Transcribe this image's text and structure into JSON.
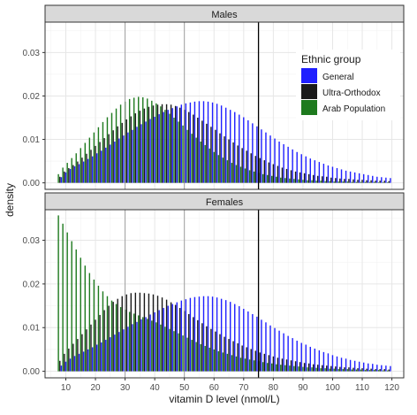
{
  "chart_data": {
    "type": "bar",
    "xlabel": "vitamin D level (nmol/L)",
    "ylabel": "density",
    "xlim": [
      3,
      124
    ],
    "ylim": [
      -0.0015,
      0.037
    ],
    "x_ticks": [
      10,
      20,
      30,
      40,
      50,
      60,
      70,
      80,
      90,
      100,
      110,
      120
    ],
    "y_ticks": [
      0.0,
      0.01,
      0.02,
      0.03
    ],
    "y_tick_labels": [
      "0.00",
      "0.01",
      "0.02",
      "0.03"
    ],
    "vlines": [
      {
        "x": 30,
        "color": "#999999"
      },
      {
        "x": 50,
        "color": "#999999"
      },
      {
        "x": 75,
        "color": "#000000"
      }
    ],
    "grid": true,
    "legend": {
      "title": "Ethnic group",
      "position": "top-right of top panel",
      "entries": [
        {
          "label": "General",
          "color": "#1f1fff"
        },
        {
          "label": "Ultra-Orthodox",
          "color": "#1a1a1a"
        },
        {
          "label": "Arab Population",
          "color": "#1e7a1e"
        }
      ]
    },
    "x_start": 8,
    "x_step": 1.5,
    "panels": [
      {
        "label": "Males",
        "series": [
          {
            "name": "General",
            "color": "#1f1fff",
            "values": [
              0.0013,
              0.0024,
              0.0032,
              0.0038,
              0.0043,
              0.0049,
              0.0055,
              0.0061,
              0.0068,
              0.0074,
              0.0081,
              0.0088,
              0.0095,
              0.0102,
              0.0109,
              0.0116,
              0.0122,
              0.0129,
              0.0135,
              0.0141,
              0.0147,
              0.0152,
              0.0158,
              0.0163,
              0.0168,
              0.0172,
              0.0176,
              0.018,
              0.0183,
              0.0185,
              0.0187,
              0.0188,
              0.0188,
              0.0187,
              0.0185,
              0.0182,
              0.0178,
              0.0173,
              0.0168,
              0.0163,
              0.0157,
              0.0151,
              0.0144,
              0.0137,
              0.013,
              0.0123,
              0.0116,
              0.0109,
              0.0102,
              0.0095,
              0.0089,
              0.0083,
              0.0077,
              0.0071,
              0.0066,
              0.0061,
              0.0056,
              0.0052,
              0.0048,
              0.0044,
              0.004,
              0.0037,
              0.0034,
              0.0031,
              0.0028,
              0.0026,
              0.0024,
              0.0022,
              0.002,
              0.0018,
              0.0016,
              0.0014,
              0.0013,
              0.0012,
              0.0011
            ]
          },
          {
            "name": "Ultra-Orthodox",
            "color": "#1a1a1a",
            "values": [
              0.0014,
              0.0026,
              0.0034,
              0.0041,
              0.0049,
              0.0058,
              0.0067,
              0.0076,
              0.0085,
              0.0094,
              0.0103,
              0.0112,
              0.0121,
              0.013,
              0.0138,
              0.0146,
              0.0153,
              0.016,
              0.0166,
              0.0171,
              0.0175,
              0.0178,
              0.018,
              0.0181,
              0.0181,
              0.018,
              0.0177,
              0.0173,
              0.0168,
              0.0163,
              0.0157,
              0.015,
              0.0143,
              0.0136,
              0.0129,
              0.0122,
              0.0114,
              0.0107,
              0.01,
              0.0093,
              0.0086,
              0.008,
              0.0074,
              0.0068,
              0.0062,
              0.0057,
              0.0052,
              0.0047,
              0.0043,
              0.0039,
              0.0035,
              0.0032,
              0.0029,
              0.0026,
              0.0024,
              0.0022,
              0.002,
              0.0018,
              0.0016,
              0.0015,
              0.0014,
              0.0012,
              0.0011,
              0.001,
              0.0009,
              0.0009,
              0.0008,
              0.0007,
              0.0007,
              0.0006,
              0.0006,
              0.0005,
              0.0005,
              0.0005,
              0.0004
            ]
          },
          {
            "name": "Arab Population",
            "color": "#1e7a1e",
            "values": [
              0.002,
              0.0035,
              0.0046,
              0.0057,
              0.0068,
              0.008,
              0.0092,
              0.0104,
              0.0116,
              0.0128,
              0.014,
              0.0151,
              0.0161,
              0.0171,
              0.018,
              0.0187,
              0.0193,
              0.0196,
              0.0198,
              0.0197,
              0.0194,
              0.0189,
              0.0183,
              0.0176,
              0.0168,
              0.0159,
              0.015,
              0.0141,
              0.0132,
              0.0122,
              0.0113,
              0.0104,
              0.0095,
              0.0087,
              0.0079,
              0.0071,
              0.0064,
              0.0058,
              0.0052,
              0.0046,
              0.0041,
              0.0037,
              0.0033,
              0.0029,
              0.0026,
              0.0023,
              0.002,
              0.0018,
              0.0016,
              0.0014,
              0.0012,
              0.0011,
              0.001,
              0.0009,
              0.0008,
              0.0007,
              0.0006,
              0.0006,
              0.0005,
              0.0005,
              0.0004,
              0.0004,
              0.0003,
              0.0003,
              0.0003,
              0.0003,
              0.0002,
              0.0002,
              0.0002,
              0.0002,
              0.0002,
              0.0002,
              0.0001,
              0.0001,
              0.0001
            ]
          }
        ]
      },
      {
        "label": "Females",
        "series": [
          {
            "name": "General",
            "color": "#1f1fff",
            "values": [
              0.0013,
              0.0022,
              0.0029,
              0.0035,
              0.004,
              0.0045,
              0.005,
              0.0055,
              0.0061,
              0.0066,
              0.0072,
              0.0078,
              0.0084,
              0.009,
              0.0096,
              0.0102,
              0.0108,
              0.0113,
              0.0119,
              0.0124,
              0.013,
              0.0135,
              0.014,
              0.0145,
              0.015,
              0.0154,
              0.0158,
              0.0162,
              0.0165,
              0.0168,
              0.017,
              0.0171,
              0.0172,
              0.0172,
              0.0171,
              0.0169,
              0.0166,
              0.0163,
              0.0159,
              0.0154,
              0.0149,
              0.0143,
              0.0137,
              0.0131,
              0.0125,
              0.0118,
              0.0112,
              0.0105,
              0.0099,
              0.0093,
              0.0087,
              0.0081,
              0.0076,
              0.007,
              0.0065,
              0.0061,
              0.0056,
              0.0052,
              0.0048,
              0.0044,
              0.0041,
              0.0037,
              0.0034,
              0.0031,
              0.0029,
              0.0026,
              0.0024,
              0.0022,
              0.002,
              0.0018,
              0.0017,
              0.0015,
              0.0014,
              0.0013,
              0.0012
            ]
          },
          {
            "name": "Ultra-Orthodox",
            "color": "#1a1a1a",
            "values": [
              0.0024,
              0.004,
              0.0052,
              0.0063,
              0.0074,
              0.0085,
              0.0096,
              0.0107,
              0.0118,
              0.0129,
              0.014,
              0.015,
              0.0159,
              0.0166,
              0.0172,
              0.0176,
              0.0179,
              0.018,
              0.018,
              0.0179,
              0.0178,
              0.0176,
              0.0173,
              0.0169,
              0.0164,
              0.0158,
              0.0152,
              0.0145,
              0.0138,
              0.0131,
              0.0124,
              0.0117,
              0.011,
              0.0103,
              0.0097,
              0.0091,
              0.0085,
              0.0079,
              0.0074,
              0.0069,
              0.0064,
              0.0059,
              0.0055,
              0.0051,
              0.0047,
              0.0043,
              0.004,
              0.0037,
              0.0034,
              0.0031,
              0.0029,
              0.0027,
              0.0025,
              0.0023,
              0.0021,
              0.0019,
              0.0018,
              0.0016,
              0.0015,
              0.0014,
              0.0013,
              0.0012,
              0.0011,
              0.001,
              0.0009,
              0.0009,
              0.0008,
              0.0007,
              0.0007,
              0.0006,
              0.0006,
              0.0005,
              0.0005,
              0.0005,
              0.0004
            ]
          },
          {
            "name": "Arab Population",
            "color": "#1e7a1e",
            "values": [
              0.0357,
              0.0338,
              0.0318,
              0.0298,
              0.0279,
              0.026,
              0.0242,
              0.0225,
              0.021,
              0.0196,
              0.0183,
              0.0172,
              0.0162,
              0.0154,
              0.0147,
              0.0141,
              0.0136,
              0.0132,
              0.0128,
              0.0124,
              0.012,
              0.0116,
              0.0112,
              0.0107,
              0.0102,
              0.0097,
              0.0092,
              0.0087,
              0.0082,
              0.0077,
              0.0072,
              0.0067,
              0.0062,
              0.0058,
              0.0054,
              0.005,
              0.0046,
              0.0043,
              0.004,
              0.0037,
              0.0034,
              0.0031,
              0.0029,
              0.0027,
              0.0025,
              0.0023,
              0.0021,
              0.0019,
              0.0018,
              0.0016,
              0.0015,
              0.0014,
              0.0013,
              0.0012,
              0.0011,
              0.001,
              0.0009,
              0.0009,
              0.0008,
              0.0007,
              0.0007,
              0.0006,
              0.0006,
              0.0005,
              0.0005,
              0.0005,
              0.0004,
              0.0004,
              0.0004,
              0.0003,
              0.0003,
              0.0003,
              0.0003,
              0.0002,
              0.0002
            ]
          }
        ]
      }
    ]
  }
}
